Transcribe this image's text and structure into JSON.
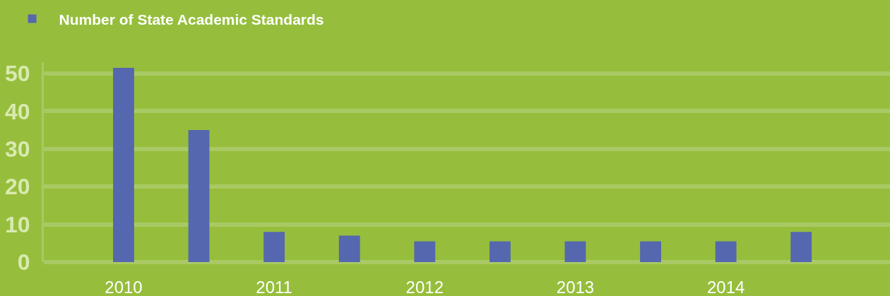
{
  "chart_data": {
    "type": "bar",
    "categories": [
      "2010",
      null,
      "2011",
      null,
      "2012",
      null,
      "2013",
      null,
      "2014",
      null
    ],
    "series": [
      {
        "name": "Number of State Academic Standards",
        "color": "#5567ae",
        "values": [
          51.5,
          35,
          8,
          7,
          5.5,
          5.5,
          5.5,
          5.5,
          5.5,
          8
        ]
      }
    ],
    "ylim": [
      0,
      53
    ],
    "yticks": [
      0,
      10,
      20,
      30,
      40,
      50
    ],
    "grid": "y",
    "legend": "top left"
  }
}
